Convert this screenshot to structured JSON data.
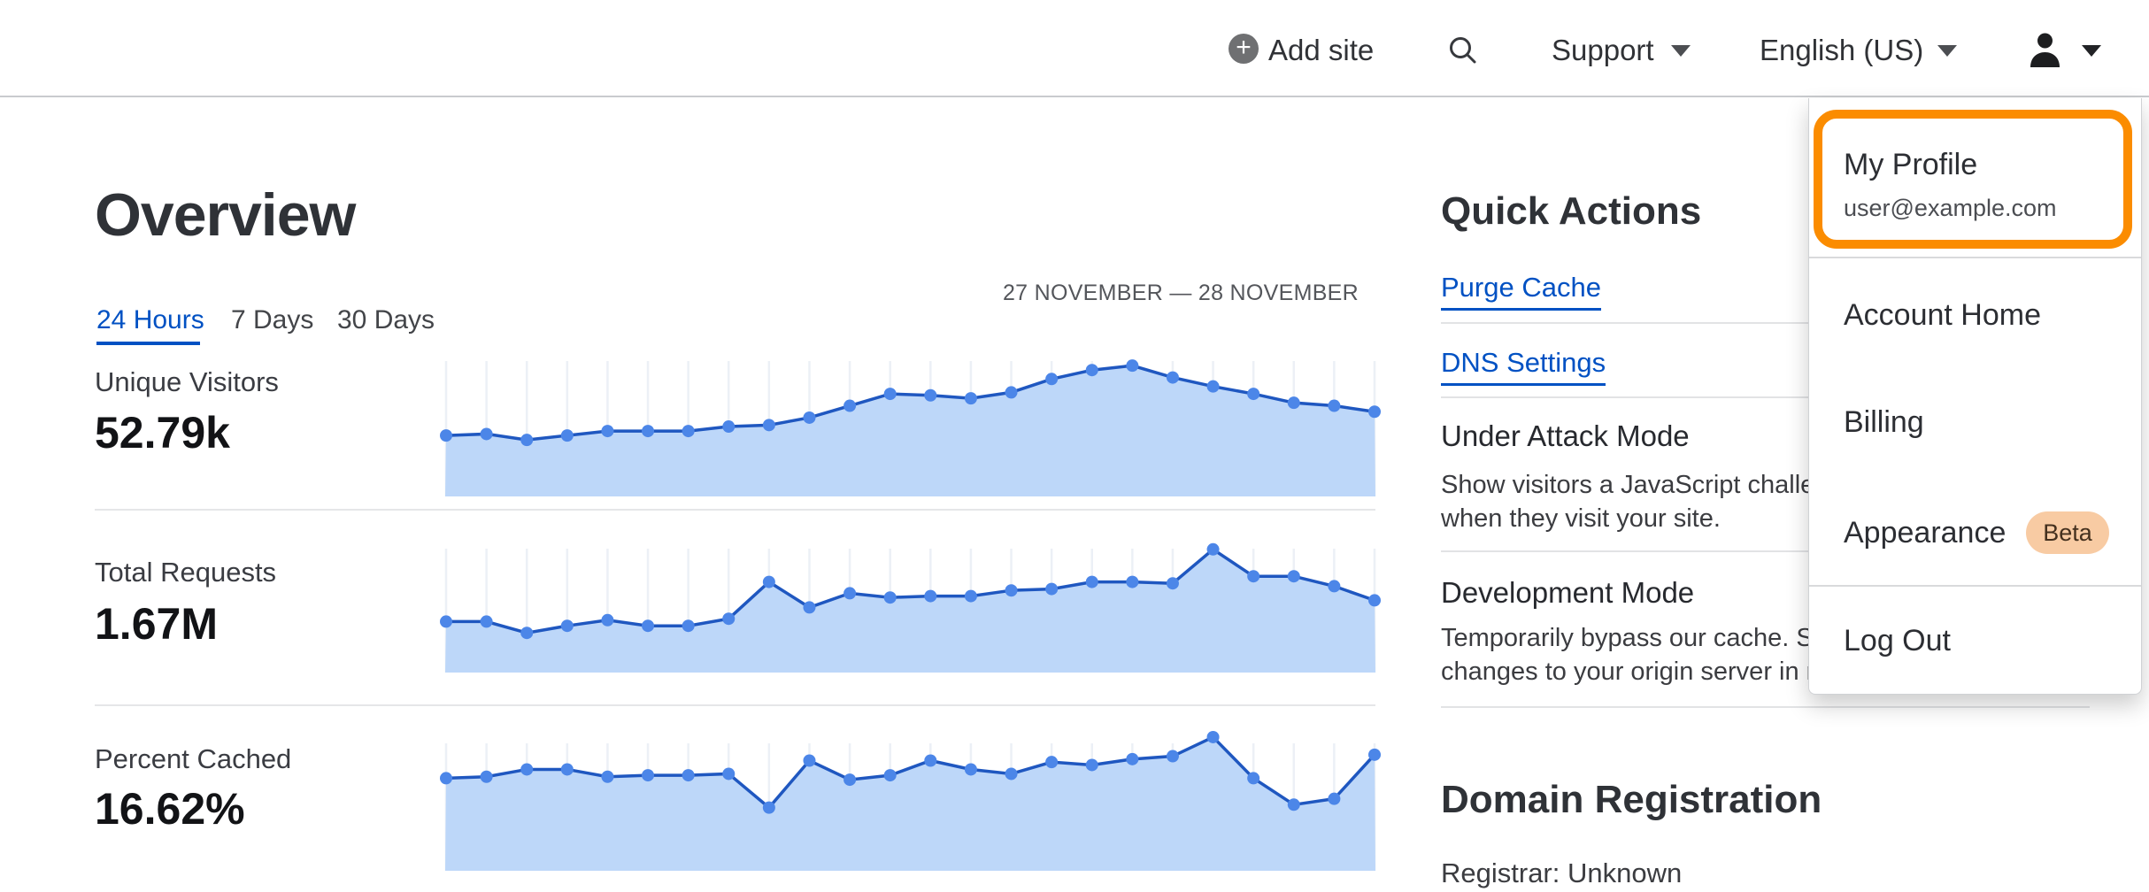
{
  "colors": {
    "accent_blue": "#0051C3",
    "highlight_orange": "#FB8C00",
    "beta_badge_bg": "#F8CBA3",
    "beta_badge_text": "#44301E",
    "chart_line": "#1F57C0",
    "chart_dot": "#4C86E8",
    "chart_fill": "#BDD7F9",
    "chart_grid": "#ECF0F6"
  },
  "header": {
    "add_site": "Add site",
    "add_icon_glyph": "+",
    "support": "Support",
    "language": "English (US)"
  },
  "user_menu": {
    "my_profile": "My Profile",
    "email": "user@example.com",
    "account_home": "Account Home",
    "billing": "Billing",
    "appearance": "Appearance",
    "beta": "Beta",
    "log_out": "Log Out"
  },
  "overview": {
    "title": "Overview",
    "tabs": {
      "h24": "24 Hours",
      "d7": "7 Days",
      "d30": "30 Days"
    },
    "active_tab": "24 Hours",
    "date_range": "27 NOVEMBER — 28 NOVEMBER",
    "metrics": [
      {
        "label": "Unique Visitors",
        "value": "52.79k"
      },
      {
        "label": "Total Requests",
        "value": "1.67M"
      },
      {
        "label": "Percent Cached",
        "value": "16.62%"
      }
    ]
  },
  "quick_actions": {
    "title": "Quick Actions",
    "purge_cache": "Purge Cache",
    "dns_settings": "DNS Settings",
    "under_attack": {
      "title": "Under Attack Mode",
      "description": [
        "Show visitors a JavaScript challenge",
        "when they visit your site."
      ]
    },
    "development_mode": {
      "title": "Development Mode",
      "description": [
        "Temporarily bypass our cache. See",
        "changes to your origin server in real time."
      ]
    }
  },
  "domain_registration": {
    "title": "Domain Registration",
    "registrar": "Registrar: Unknown"
  },
  "chart_data": [
    {
      "type": "area",
      "title": "Unique Visitors",
      "total": "52.79k",
      "x_axis": "24 hourly points, 27 November — 28 November (ticks unlabeled)",
      "y_axis": "unlabeled",
      "units": "fraction of chart height",
      "values_norm": [
        0.41,
        0.42,
        0.38,
        0.41,
        0.44,
        0.44,
        0.44,
        0.47,
        0.48,
        0.53,
        0.61,
        0.69,
        0.68,
        0.66,
        0.7,
        0.79,
        0.85,
        0.88,
        0.8,
        0.74,
        0.69,
        0.63,
        0.61,
        0.57
      ]
    },
    {
      "type": "area",
      "title": "Total Requests",
      "total": "1.67M",
      "x_axis": "24 hourly points, 27 November — 28 November (ticks unlabeled)",
      "y_axis": "unlabeled",
      "units": "fraction of chart height",
      "values_norm": [
        0.36,
        0.36,
        0.28,
        0.33,
        0.37,
        0.33,
        0.33,
        0.38,
        0.64,
        0.46,
        0.56,
        0.53,
        0.54,
        0.54,
        0.58,
        0.59,
        0.64,
        0.64,
        0.63,
        0.87,
        0.68,
        0.68,
        0.61,
        0.51
      ]
    },
    {
      "type": "area",
      "title": "Percent Cached",
      "total": "16.62%",
      "x_axis": "24 hourly points, 27 November — 28 November (ticks unlabeled)",
      "y_axis": "unlabeled",
      "units": "fraction of chart height",
      "values_norm": [
        0.63,
        0.64,
        0.69,
        0.69,
        0.64,
        0.65,
        0.65,
        0.66,
        0.43,
        0.75,
        0.62,
        0.65,
        0.75,
        0.69,
        0.66,
        0.74,
        0.72,
        0.76,
        0.78,
        0.91,
        0.63,
        0.45,
        0.49,
        0.79
      ]
    }
  ]
}
